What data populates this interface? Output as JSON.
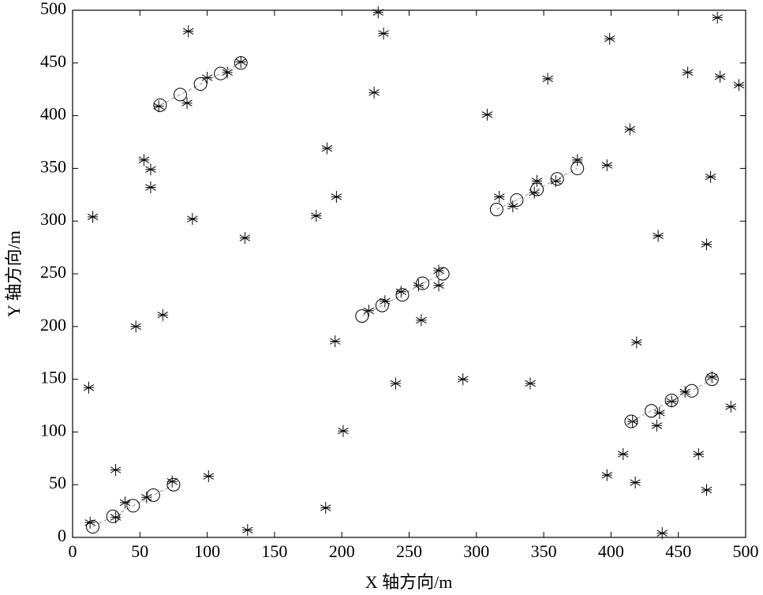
{
  "chart_data": {
    "type": "scatter",
    "x_label": "X 轴方向/m",
    "y_label": "Y 轴方向/m",
    "xlim": [
      0,
      500
    ],
    "ylim": [
      0,
      500
    ],
    "xticks": [
      0,
      50,
      100,
      150,
      200,
      250,
      300,
      350,
      400,
      450,
      500
    ],
    "yticks": [
      0,
      50,
      100,
      150,
      200,
      250,
      300,
      350,
      400,
      450,
      500
    ],
    "grid": false,
    "series": [
      {
        "marker": "star",
        "color": "#000000",
        "x": [
          12,
          15,
          32,
          47,
          53,
          58,
          58,
          67,
          89,
          86,
          85,
          64,
          101,
          128,
          130,
          125,
          115,
          100,
          13,
          32,
          39,
          55,
          74,
          181,
          189,
          196,
          195,
          201,
          188,
          224,
          227,
          231,
          240,
          259,
          290,
          308,
          340,
          353,
          220,
          232,
          244,
          257,
          272,
          272,
          317,
          327,
          343,
          345,
          359,
          375,
          399,
          397,
          414,
          419,
          435,
          397,
          409,
          418,
          438,
          434,
          436,
          455,
          445,
          416,
          465,
          471,
          489,
          475,
          471,
          474,
          457,
          481,
          495,
          479
        ],
        "y": [
          142,
          304,
          64,
          200,
          358,
          349,
          332,
          211,
          302,
          480,
          412,
          409,
          58,
          284,
          7,
          451,
          441,
          436,
          14,
          19,
          33,
          38,
          53,
          305,
          369,
          323,
          186,
          101,
          28,
          422,
          498,
          478,
          146,
          206,
          150,
          401,
          146,
          435,
          215,
          224,
          233,
          239,
          239,
          253,
          323,
          314,
          327,
          338,
          338,
          358,
          473,
          353,
          387,
          185,
          286,
          59,
          79,
          52,
          4,
          106,
          118,
          138,
          129,
          110,
          79,
          45,
          124,
          152,
          278,
          342,
          441,
          437,
          429,
          493
        ]
      },
      {
        "marker": "circle",
        "color": "#000000",
        "line_color": "#999999",
        "x": [
          15,
          30,
          45,
          60,
          75,
          null,
          65,
          80,
          95,
          110,
          125,
          null,
          215,
          230,
          245,
          260,
          275,
          null,
          315,
          330,
          345,
          360,
          375,
          null,
          415,
          430,
          445,
          460,
          475
        ],
        "y": [
          10,
          20,
          30,
          40,
          50,
          null,
          410,
          420,
          430,
          440,
          450,
          null,
          210,
          220,
          230,
          241,
          250,
          null,
          311,
          320,
          330,
          340,
          350,
          null,
          110,
          120,
          130,
          139,
          150
        ]
      }
    ]
  }
}
